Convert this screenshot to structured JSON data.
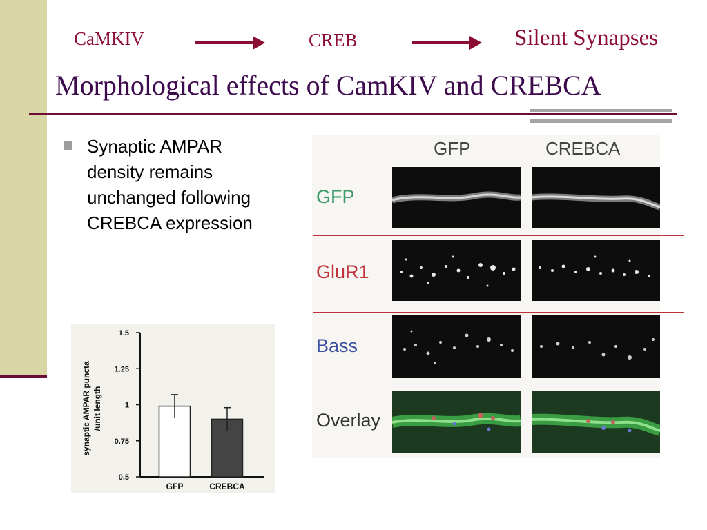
{
  "flow": {
    "step1": "CaMKIV",
    "step2": "CREB",
    "step3": "Silent Synapses"
  },
  "title": "Morphological effects of CamKIV and CREBCA",
  "bullet": {
    "lines": [
      "Synaptic AMPAR",
      "density remains",
      "unchanged following",
      "CREBCA expression"
    ]
  },
  "chart_data": {
    "type": "bar",
    "categories": [
      "GFP",
      "CREBCA"
    ],
    "values": [
      0.99,
      0.9
    ],
    "errors": [
      0.08,
      0.08
    ],
    "colors": [
      "#ffffff",
      "#444444"
    ],
    "ylabel_line1": "synaptic AMPAR puncta",
    "ylabel_line2": "/unit length",
    "yticks": [
      "1.5",
      "1.25",
      "1",
      "0.75",
      "0.5"
    ],
    "ylim": [
      0.5,
      1.5
    ]
  },
  "figure": {
    "col_headers": [
      "GFP",
      "CREBCA"
    ],
    "rows": [
      {
        "label": "GFP",
        "color": "#3a9a6a"
      },
      {
        "label": "GluR1",
        "color": "#c2323b"
      },
      {
        "label": "Bass",
        "color": "#3b4fa0"
      },
      {
        "label": "Overlay",
        "color": "#333333"
      }
    ]
  },
  "colors": {
    "accent": "#8b0d34",
    "title": "#3e0a4e",
    "sidebar": "#d9d6a5"
  }
}
